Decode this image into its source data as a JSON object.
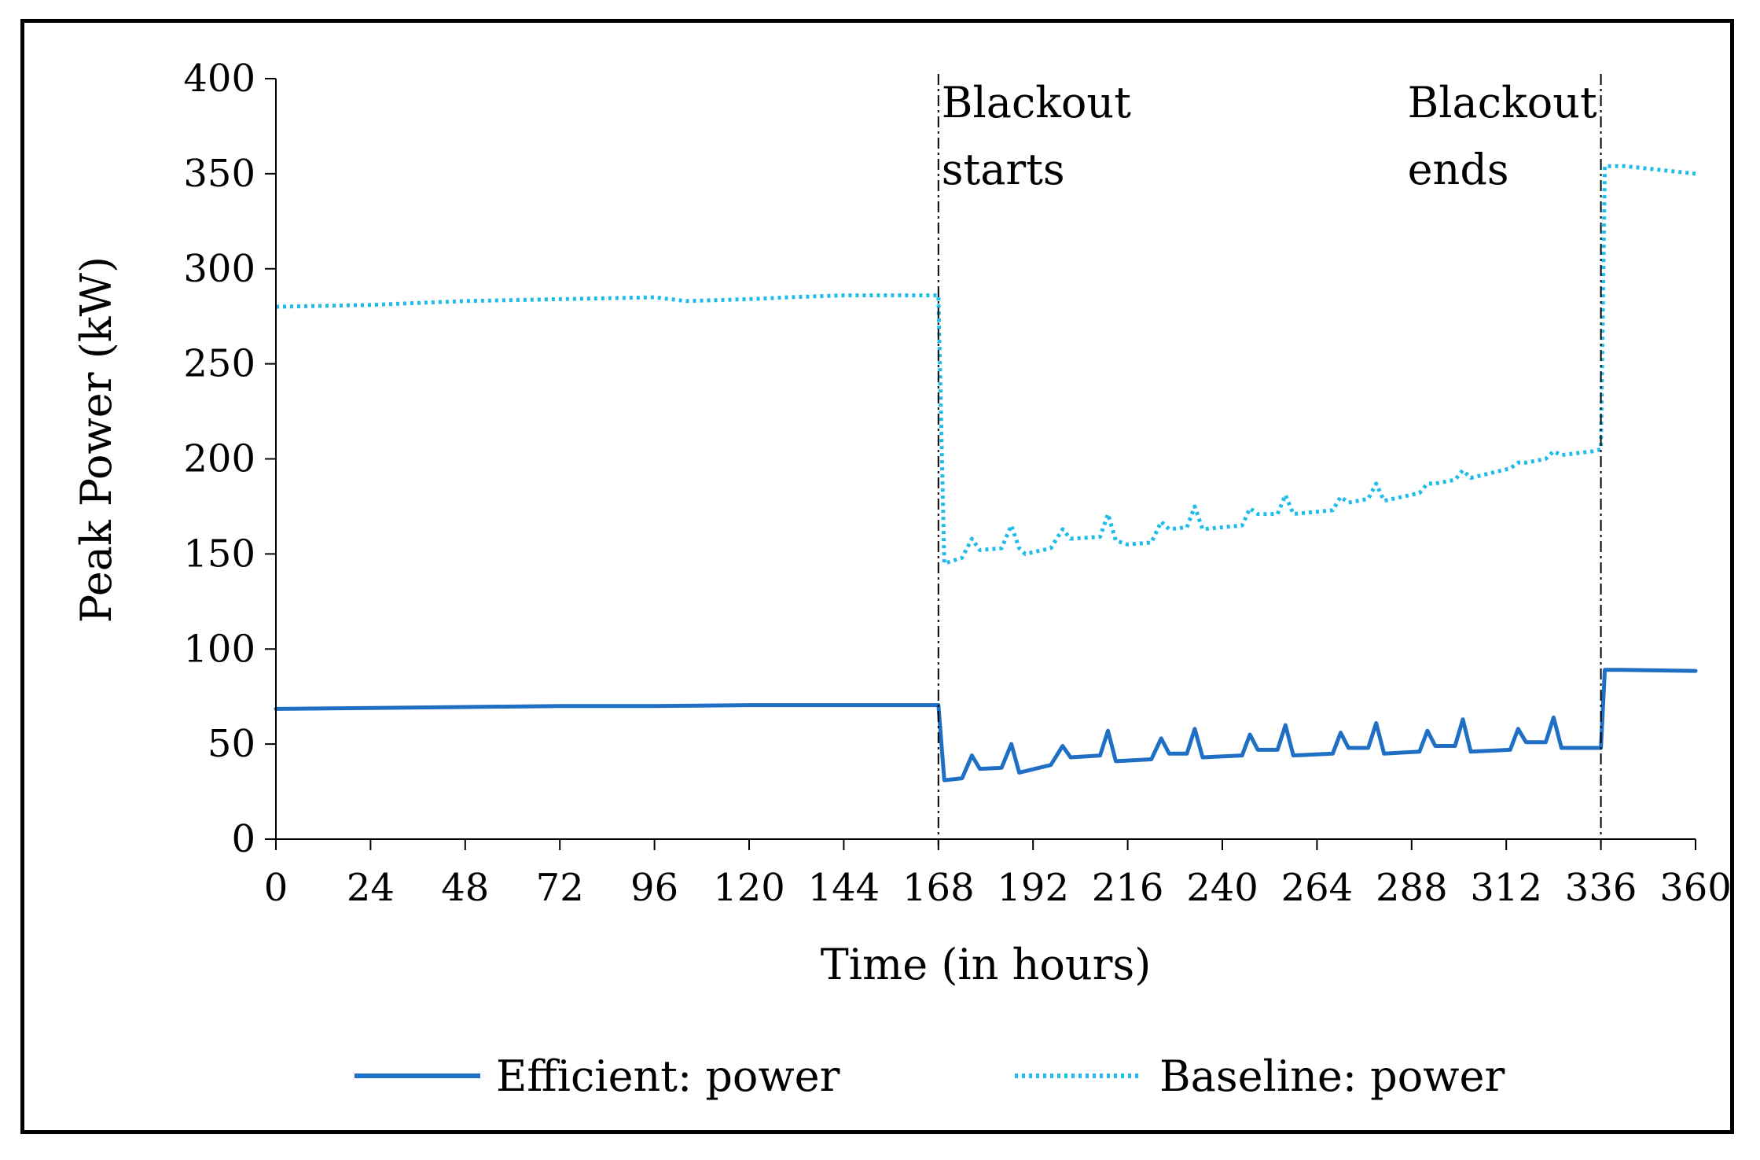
{
  "chart_data": {
    "type": "line",
    "title": "",
    "xlabel": "Time (in hours)",
    "ylabel": "Peak Power (kW)",
    "xlim": [
      0,
      360
    ],
    "ylim": [
      0,
      400
    ],
    "x_ticks": [
      "0",
      "24",
      "48",
      "72",
      "96",
      "120",
      "144",
      "168",
      "192",
      "216",
      "240",
      "264",
      "288",
      "312",
      "336",
      "360"
    ],
    "y_ticks": [
      "0",
      "50",
      "100",
      "150",
      "200",
      "250",
      "300",
      "350",
      "400"
    ],
    "grid": false,
    "legend_position": "bottom",
    "colors": {
      "efficient": "#1f6fc5",
      "baseline": "#1fbcea",
      "axis": "#000000",
      "marker_line": "#000000"
    },
    "annotations": [
      {
        "x": 168,
        "line1": "Blackout",
        "line2": "starts"
      },
      {
        "x": 336,
        "line1": "Blackout",
        "line2": "ends"
      }
    ],
    "series": [
      {
        "name": "Efficient: power",
        "style": "solid",
        "points": [
          [
            0,
            68.5
          ],
          [
            24,
            69
          ],
          [
            48,
            69.5
          ],
          [
            72,
            70
          ],
          [
            96,
            70
          ],
          [
            120,
            70.5
          ],
          [
            144,
            70.5
          ],
          [
            168,
            70.5
          ],
          [
            169.5,
            31
          ],
          [
            174,
            32
          ],
          [
            176.5,
            44
          ],
          [
            178.5,
            37
          ],
          [
            184,
            37.5
          ],
          [
            186.5,
            50
          ],
          [
            188.5,
            35
          ],
          [
            196.5,
            39
          ],
          [
            199.5,
            49
          ],
          [
            201.5,
            43
          ],
          [
            209,
            44
          ],
          [
            211,
            57
          ],
          [
            213,
            41
          ],
          [
            222,
            42
          ],
          [
            224.5,
            53
          ],
          [
            226.5,
            45
          ],
          [
            231,
            45
          ],
          [
            233,
            58
          ],
          [
            235,
            43
          ],
          [
            245,
            44
          ],
          [
            247,
            55
          ],
          [
            249,
            47
          ],
          [
            254,
            47
          ],
          [
            256,
            60
          ],
          [
            258,
            44
          ],
          [
            268,
            45
          ],
          [
            270,
            56
          ],
          [
            272,
            48
          ],
          [
            277,
            48
          ],
          [
            279,
            61
          ],
          [
            281,
            45
          ],
          [
            290,
            46
          ],
          [
            292,
            57
          ],
          [
            294,
            49
          ],
          [
            299,
            49
          ],
          [
            301,
            63
          ],
          [
            303,
            46
          ],
          [
            313,
            47
          ],
          [
            315,
            58
          ],
          [
            317,
            51
          ],
          [
            322,
            51
          ],
          [
            324,
            64
          ],
          [
            326,
            48
          ],
          [
            336,
            48
          ],
          [
            337,
            89
          ],
          [
            341,
            89
          ],
          [
            360,
            88.5
          ]
        ]
      },
      {
        "name": "Baseline: power",
        "style": "dotted",
        "points": [
          [
            0,
            280
          ],
          [
            24,
            281
          ],
          [
            48,
            283
          ],
          [
            72,
            284
          ],
          [
            96,
            285
          ],
          [
            104,
            283
          ],
          [
            120,
            284
          ],
          [
            130,
            285
          ],
          [
            144,
            286
          ],
          [
            168,
            286
          ],
          [
            169.5,
            145
          ],
          [
            174,
            148
          ],
          [
            176.5,
            158
          ],
          [
            178.5,
            152
          ],
          [
            184,
            153
          ],
          [
            186.5,
            165
          ],
          [
            188.5,
            153
          ],
          [
            190,
            150
          ],
          [
            196.5,
            153
          ],
          [
            199.5,
            163
          ],
          [
            201.5,
            158
          ],
          [
            209,
            159
          ],
          [
            211,
            171
          ],
          [
            213,
            157
          ],
          [
            216,
            155
          ],
          [
            222,
            156
          ],
          [
            224.5,
            167
          ],
          [
            226.5,
            163
          ],
          [
            231,
            164
          ],
          [
            233,
            175
          ],
          [
            235,
            163
          ],
          [
            245,
            165
          ],
          [
            247,
            174
          ],
          [
            249,
            171
          ],
          [
            254,
            171
          ],
          [
            256,
            181
          ],
          [
            258,
            171
          ],
          [
            268,
            173
          ],
          [
            270,
            180
          ],
          [
            272,
            177
          ],
          [
            277,
            179
          ],
          [
            279,
            187
          ],
          [
            281,
            178
          ],
          [
            290,
            182
          ],
          [
            292,
            187
          ],
          [
            294,
            187
          ],
          [
            299,
            189
          ],
          [
            301,
            194
          ],
          [
            303,
            190
          ],
          [
            313,
            195
          ],
          [
            315,
            198
          ],
          [
            317,
            198
          ],
          [
            322,
            200
          ],
          [
            324,
            204
          ],
          [
            326,
            202
          ],
          [
            334,
            204
          ],
          [
            336,
            205
          ],
          [
            337,
            354
          ],
          [
            342,
            354
          ],
          [
            360,
            350
          ]
        ]
      }
    ]
  }
}
